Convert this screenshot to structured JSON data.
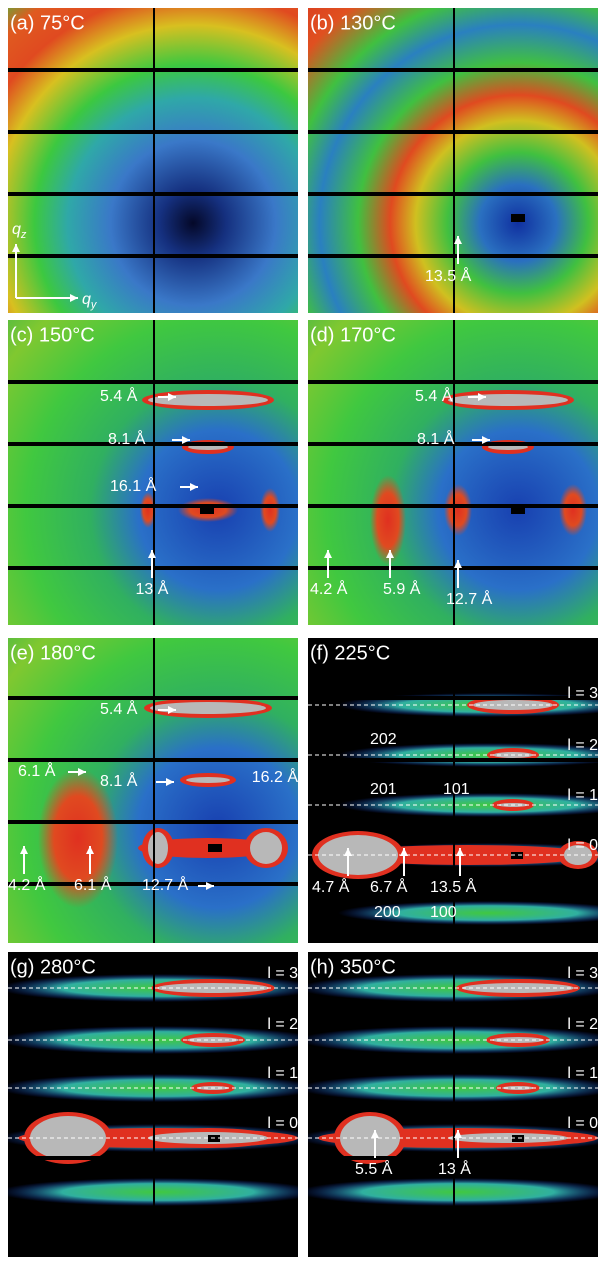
{
  "panels": [
    {
      "label": "(a) 75°C",
      "axes": {
        "vertical": {
          "symbol": "q",
          "subscript": "z"
        },
        "horizontal": {
          "symbol": "q",
          "subscript": "y"
        }
      },
      "annotations": []
    },
    {
      "label": "(b) 130°C",
      "annotations": [
        "13.5 Å"
      ]
    },
    {
      "label": "(c) 150°C",
      "annotations": [
        "5.4 Å",
        "8.1 Å",
        "16.1 Å",
        "13 Å"
      ]
    },
    {
      "label": "(d) 170°C",
      "annotations": [
        "5.4 Å",
        "8.1 Å",
        "4.2 Å",
        "5.9 Å",
        "12.7 Å"
      ]
    },
    {
      "label": "(e) 180°C",
      "annotations": [
        "5.4 Å",
        "8.1 Å",
        "6.1 Å",
        "16.2 Å",
        "4.2 Å",
        "6.1 Å",
        "12.7 Å"
      ]
    },
    {
      "label": "(f) 225°C",
      "annotations": [
        "l = 3",
        "l = 2",
        "l = 1",
        "l = 0",
        "202",
        "201",
        "101",
        "4.7 Å",
        "6.7 Å",
        "13.5 Å",
        "200",
        "100"
      ]
    },
    {
      "label": "(g) 280°C",
      "annotations": [
        "l = 3",
        "l = 2",
        "l = 1",
        "l = 0"
      ]
    },
    {
      "label": "(h) 350°C",
      "annotations": [
        "l = 3",
        "l = 2",
        "l = 1",
        "l = 0",
        "5.5 Å",
        "13 Å"
      ]
    }
  ]
}
